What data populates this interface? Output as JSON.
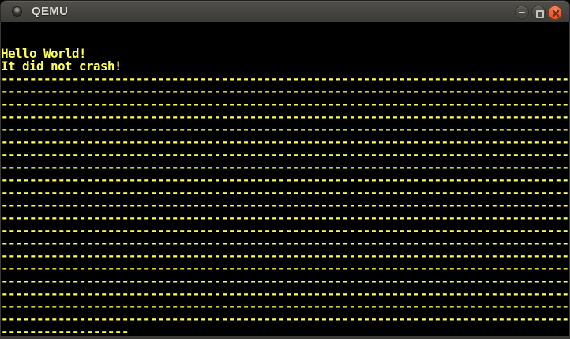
{
  "window": {
    "title": "QEMU",
    "controls": {
      "minimize_icon": "horizontal-bar",
      "maximize_icon": "square-outline",
      "close_icon": "x-cross"
    }
  },
  "colors": {
    "terminal_text": "#fcfc54",
    "terminal_bg": "#000000",
    "titlebar_top": "#504f4a",
    "titlebar_bottom": "#3c3b37",
    "close_button": "#ea6439",
    "button_glyph": "#c6c4bd"
  },
  "terminal": {
    "columns": 80,
    "rows": 25,
    "lines": [
      "",
      "",
      "Hello World!",
      "It did not crash!",
      "--------------------------------------------------------------------------------",
      "--------------------------------------------------------------------------------",
      "--------------------------------------------------------------------------------",
      "--------------------------------------------------------------------------------",
      "--------------------------------------------------------------------------------",
      "--------------------------------------------------------------------------------",
      "--------------------------------------------------------------------------------",
      "--------------------------------------------------------------------------------",
      "--------------------------------------------------------------------------------",
      "--------------------------------------------------------------------------------",
      "--------------------------------------------------------------------------------",
      "--------------------------------------------------------------------------------",
      "--------------------------------------------------------------------------------",
      "--------------------------------------------------------------------------------",
      "--------------------------------------------------------------------------------",
      "--------------------------------------------------------------------------------",
      "--------------------------------------------------------------------------------",
      "--------------------------------------------------------------------------------",
      "--------------------------------------------------------------------------------",
      "--------------------------------------------------------------------------------",
      "------------------"
    ]
  }
}
